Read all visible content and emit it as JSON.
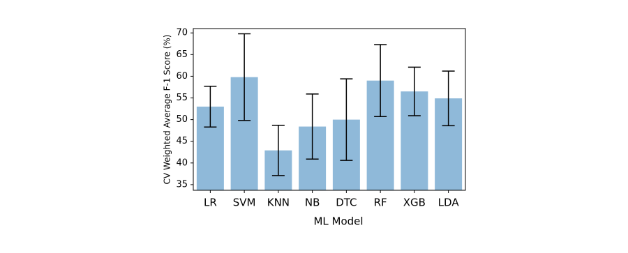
{
  "chart_data": {
    "type": "bar",
    "x_label": "ML Model",
    "y_label": "CV Weighted Average F-1 Score (%)",
    "categories": [
      "LR",
      "SVM",
      "KNN",
      "NB",
      "DTC",
      "RF",
      "XGB",
      "LDA"
    ],
    "values": [
      53.0,
      59.8,
      42.9,
      48.4,
      50.0,
      59.0,
      56.5,
      54.9
    ],
    "errors": [
      4.7,
      10.0,
      5.8,
      7.5,
      9.4,
      8.3,
      5.6,
      6.3
    ],
    "color": "#8fb9d9",
    "ylim": [
      33.7,
      71.0
    ],
    "yticks": [
      35,
      40,
      45,
      50,
      55,
      60,
      65,
      70
    ],
    "grid": false
  }
}
